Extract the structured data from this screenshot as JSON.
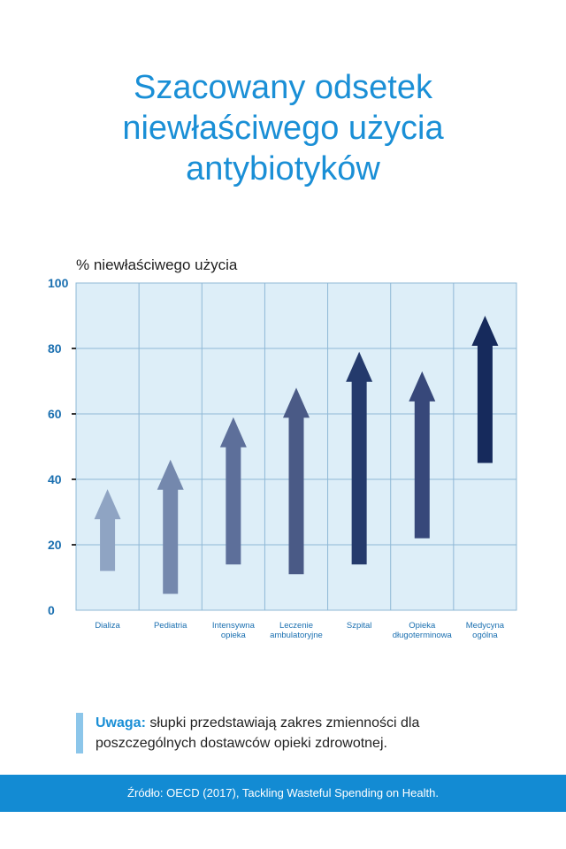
{
  "title_lines": [
    "Szacowany odsetek",
    "niewłaściwego użycia",
    "antybiotyków"
  ],
  "note": {
    "label": "Uwaga:",
    "text_line1": " słupki przedstawiają zakres zmienności dla",
    "text_line2": "poszczególnych dostawców opieki zdrowotnej."
  },
  "footer": "Źródło: OECD (2017), Tackling Wasteful Spending on Health.",
  "colors": {
    "title": "#1a8fd6",
    "plot_bg": "#ddeef8",
    "grid": "#8fb8d6",
    "axis_ticks": "#1a6fb0",
    "category_label": "#1a6fb0"
  },
  "chart_data": {
    "type": "range-arrows",
    "ylabel": "% niewłaściwego użycia",
    "ylim": [
      0,
      100
    ],
    "yticks": [
      0,
      20,
      40,
      60,
      80,
      100
    ],
    "grid": true,
    "categories": [
      [
        "Dializa"
      ],
      [
        "Pediatria"
      ],
      [
        "Intensywna",
        "opieka"
      ],
      [
        "Leczenie",
        "ambulatoryjne"
      ],
      [
        "Szpital"
      ],
      [
        "Opieka",
        "długoterminowa"
      ],
      [
        "Medycyna",
        "ogólna"
      ]
    ],
    "ranges": [
      {
        "low": 12,
        "high": 37
      },
      {
        "low": 5,
        "high": 46
      },
      {
        "low": 14,
        "high": 59
      },
      {
        "low": 11,
        "high": 68
      },
      {
        "low": 14,
        "high": 79
      },
      {
        "low": 22,
        "high": 73
      },
      {
        "low": 45,
        "high": 90
      }
    ],
    "arrow_colors": [
      "#8fa4c3",
      "#7488ad",
      "#5d6f9a",
      "#4a5a86",
      "#243a6c",
      "#37487a",
      "#162a5c"
    ]
  }
}
